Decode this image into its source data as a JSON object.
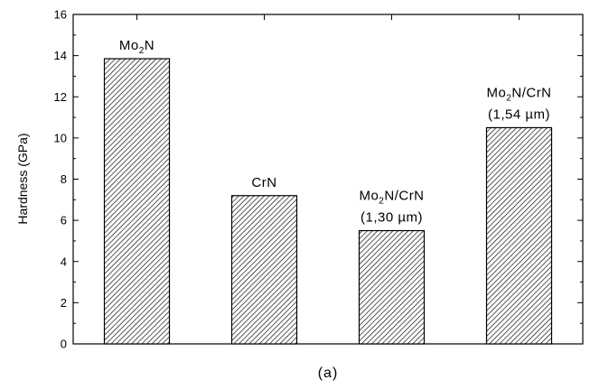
{
  "chart_data": {
    "type": "bar",
    "categories": [
      {
        "parts": [
          "Mo",
          "2",
          "N"
        ],
        "line2": ""
      },
      {
        "parts": [
          "CrN",
          "",
          ""
        ],
        "line2": ""
      },
      {
        "parts": [
          "Mo",
          "2",
          "N/CrN"
        ],
        "line2": "(1,30 µm)"
      },
      {
        "parts": [
          "Mo",
          "2",
          "N/CrN"
        ],
        "line2": "(1,54 µm)"
      }
    ],
    "values": [
      13.85,
      7.2,
      5.5,
      10.5
    ],
    "ylabel": "Hardness (GPa)",
    "ylim": [
      0,
      16
    ],
    "yticks": [
      "0",
      "2",
      "4",
      "6",
      "8",
      "10",
      "12",
      "14",
      "16"
    ],
    "caption": "(a)",
    "pattern": "diagonal-hatch"
  }
}
